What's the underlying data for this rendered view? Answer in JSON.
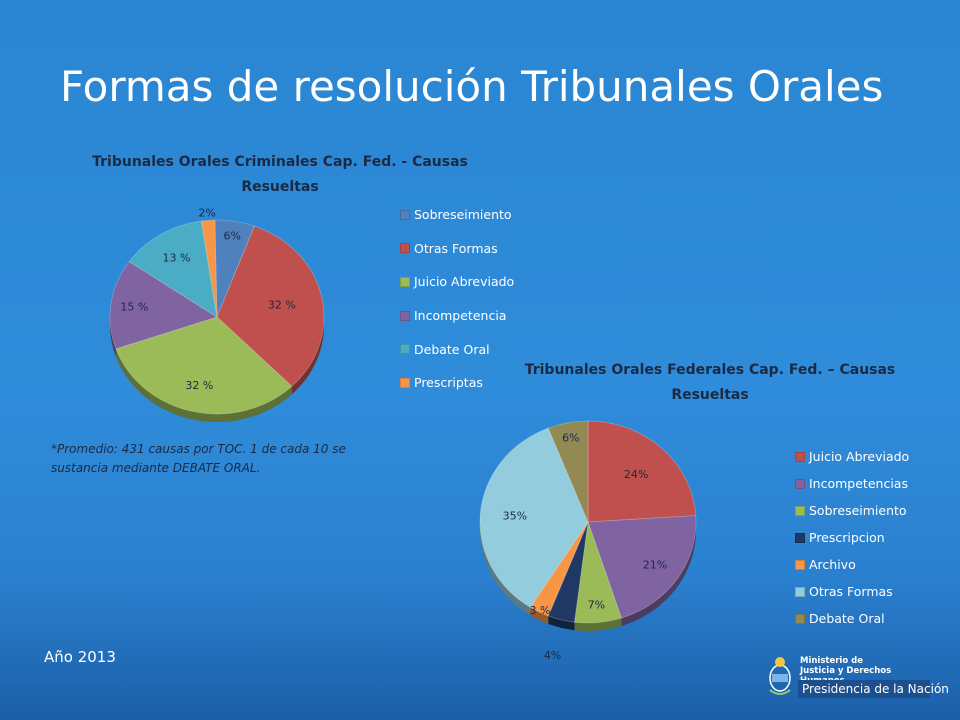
{
  "slide": {
    "title": "Formas de resolución Tribunales Orales",
    "year": "Año 2013",
    "note": "*Promedio: 431 causas  por TOC.  1 de cada 10 se sustancia mediante DEBATE ORAL."
  },
  "logo": {
    "ministry": "Ministerio de\nJusticia y Derechos Humanos",
    "presidency": "Presidencia de la Nación"
  },
  "chart_data": [
    {
      "type": "pie",
      "title": "Tribunales Orales Criminales Cap. Fed.  - Causas Resueltas",
      "legend_position": "right",
      "slices": [
        {
          "name": "Sobreseimiento",
          "value": 6,
          "label": "6%",
          "color": "#4f81bd"
        },
        {
          "name": "Otras Formas",
          "value": 32,
          "label": "32 %",
          "color": "#c0504d"
        },
        {
          "name": "Juicio Abreviado",
          "value": 32,
          "label": "32 %",
          "color": "#9bbb59"
        },
        {
          "name": "Incompetencia",
          "value": 15,
          "label": "15 %",
          "color": "#8064a2"
        },
        {
          "name": "Debate Oral",
          "value": 13,
          "label": "13 %",
          "color": "#4bacc6"
        },
        {
          "name": "Prescriptas",
          "value": 2,
          "label": "2%",
          "color": "#f79646"
        }
      ]
    },
    {
      "type": "pie",
      "title": "Tribunales Orales Federales Cap. Fed. – Causas Resueltas",
      "legend_position": "right",
      "slices": [
        {
          "name": "Juicio Abreviado",
          "value": 24,
          "label": "24%",
          "color": "#c0504d"
        },
        {
          "name": "Incompetencias",
          "value": 21,
          "label": "21%",
          "color": "#8064a2"
        },
        {
          "name": "Sobreseimiento",
          "value": 7,
          "label": "7%",
          "color": "#9bbb59"
        },
        {
          "name": "Prescripcion",
          "value": 4,
          "label": "4%",
          "color": "#1f3864"
        },
        {
          "name": "Archivo",
          "value": 3,
          "label": "3 %",
          "color": "#f79646"
        },
        {
          "name": "Otras Formas",
          "value": 35,
          "label": "35%",
          "color": "#93cddd"
        },
        {
          "name": "Debate Oral",
          "value": 6,
          "label": "6%",
          "color": "#938953"
        }
      ]
    }
  ]
}
